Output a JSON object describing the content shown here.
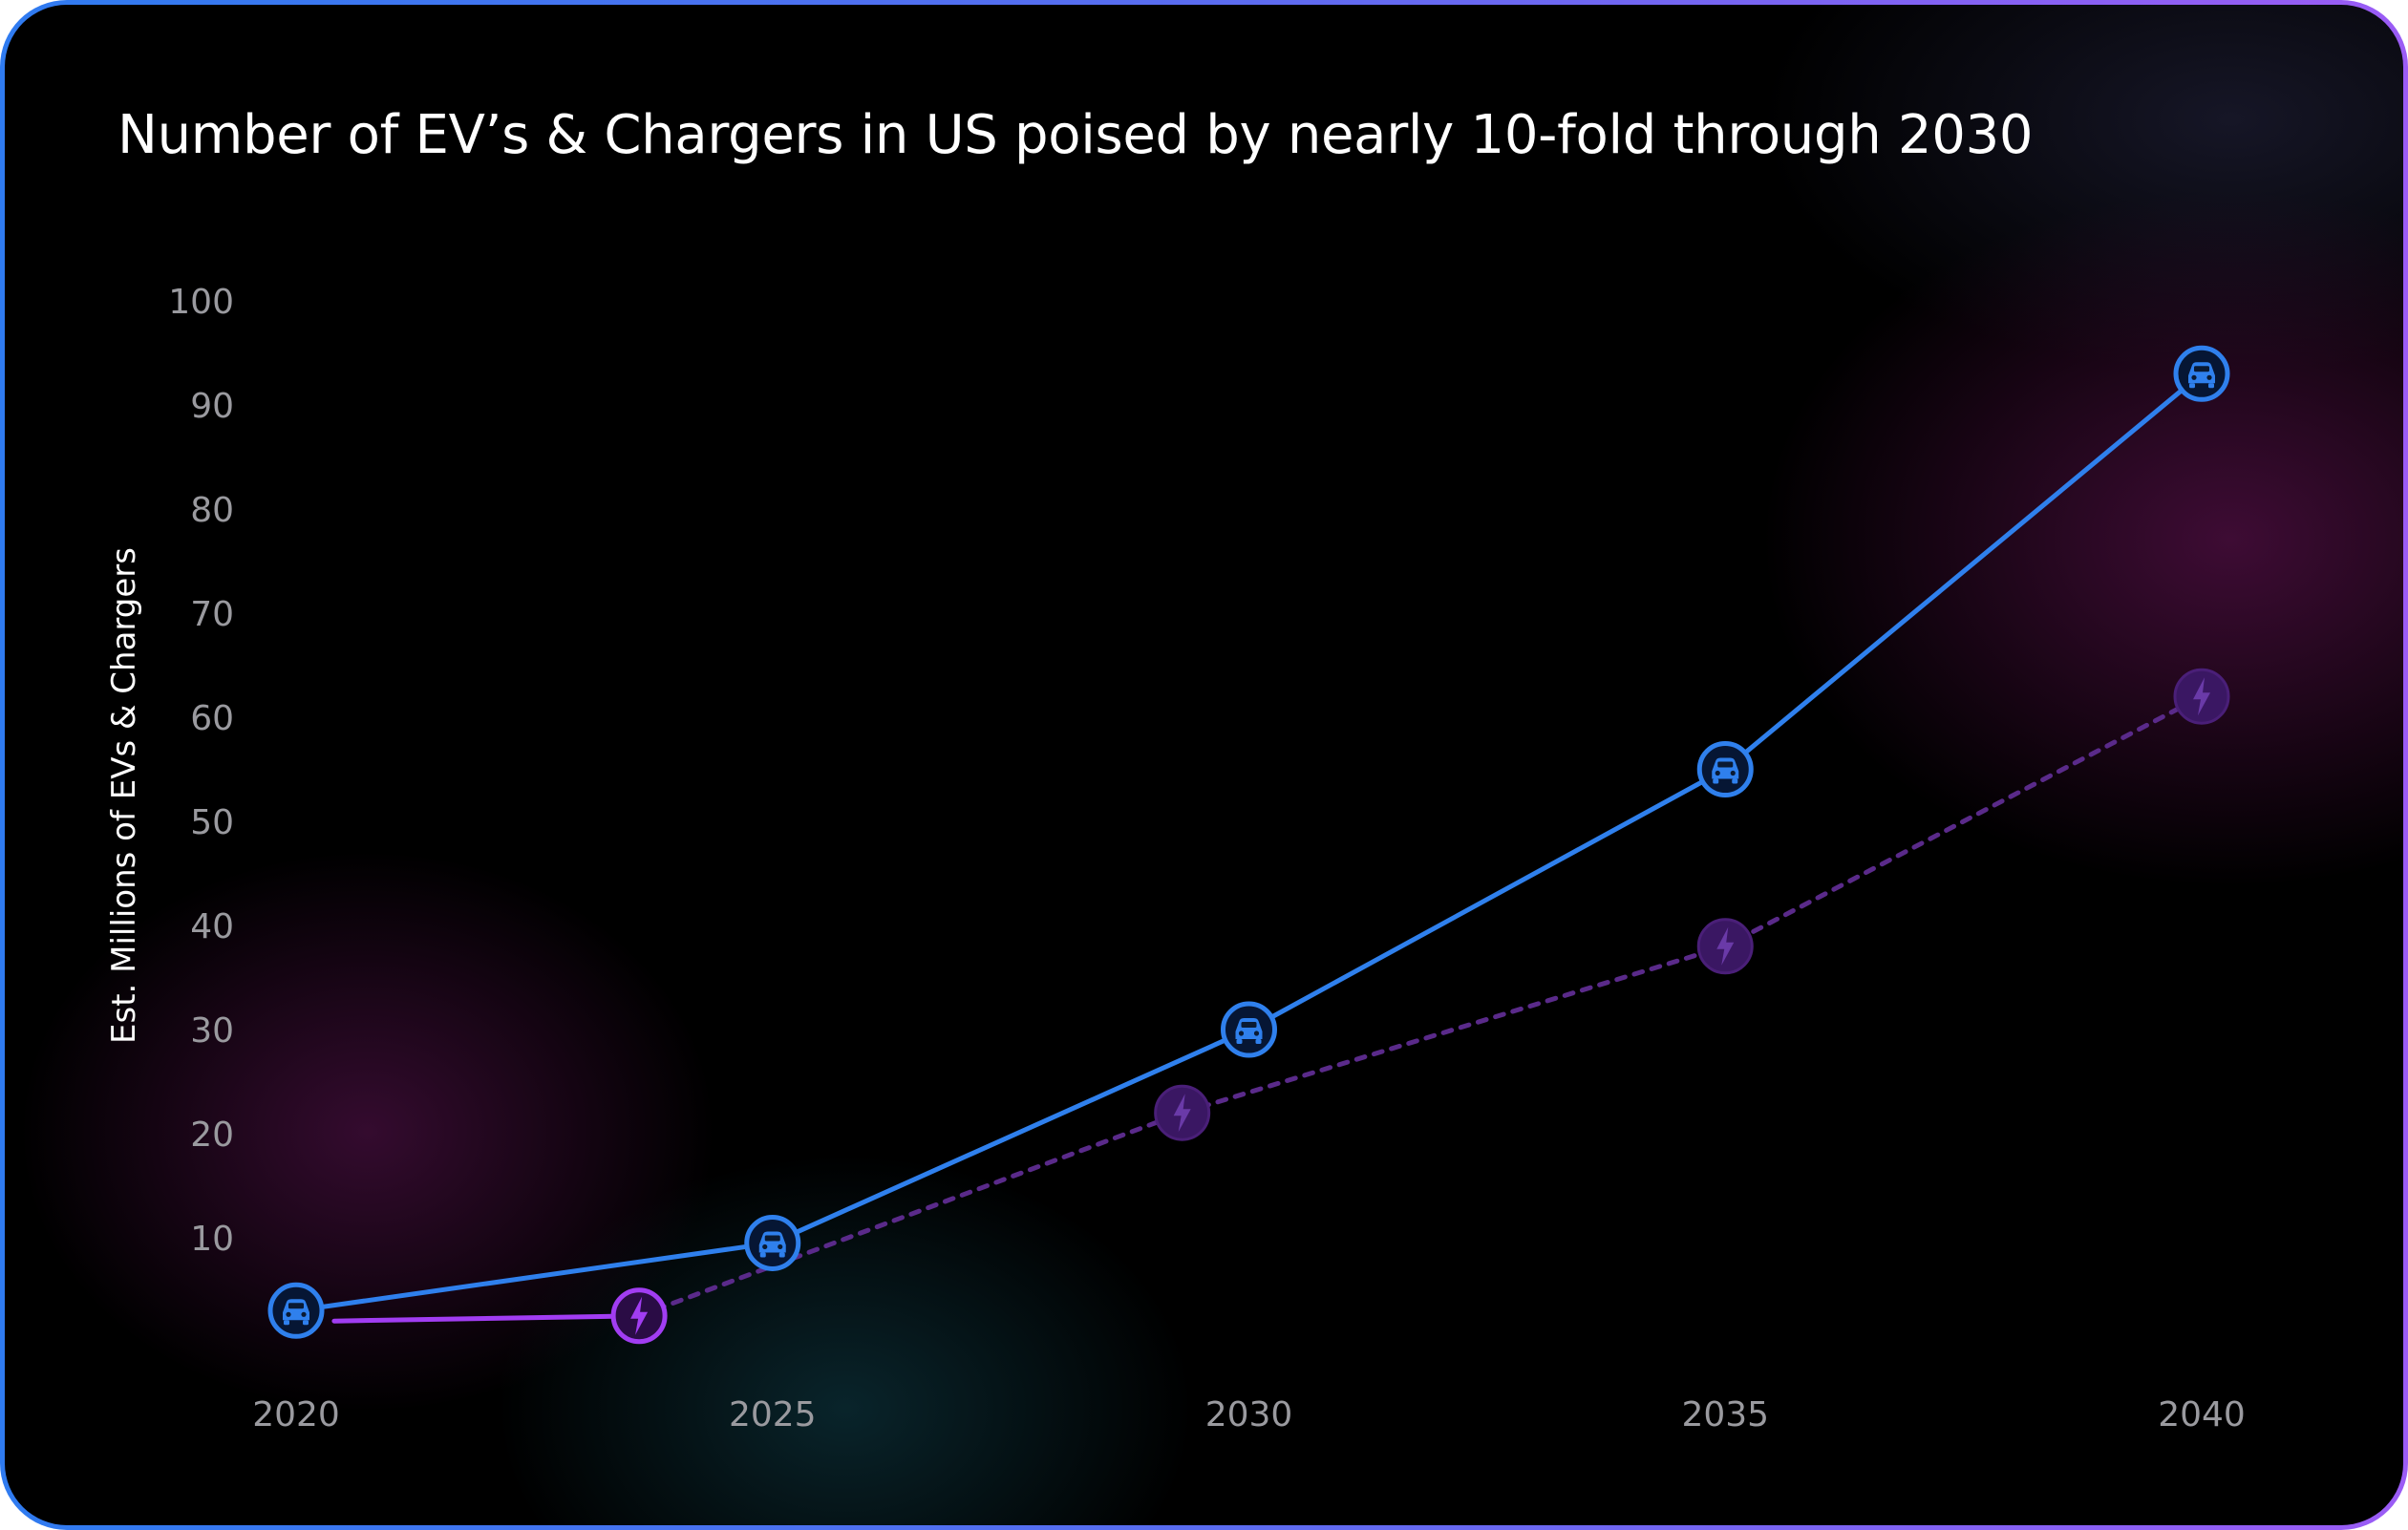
{
  "chart_data": {
    "type": "line",
    "title": "Number of EV’s & Chargers in US poised by nearly 10-fold through 2030",
    "xlabel": "",
    "ylabel": "Est. Millions of EVs & Chargers",
    "x_ticks": [
      "2020",
      "2025",
      "2030",
      "2035",
      "2040"
    ],
    "y_ticks": [
      "10",
      "20",
      "30",
      "40",
      "50",
      "60",
      "70",
      "80",
      "90",
      "100"
    ],
    "xlim": [
      2020,
      2040
    ],
    "ylim": [
      0,
      100
    ],
    "grid": false,
    "legend": "none",
    "series": [
      {
        "key": "evs",
        "icon": "car-icon",
        "color": "#2f80ed",
        "line_style": "solid",
        "points": [
          {
            "x": 2020,
            "y": 3
          },
          {
            "x": 2025,
            "y": 9.5
          },
          {
            "x": 2030,
            "y": 30
          },
          {
            "x": 2035,
            "y": 55
          },
          {
            "x": 2040,
            "y": 93
          }
        ]
      },
      {
        "key": "chargers",
        "icon": "lightning-icon",
        "color": "#a13df2",
        "projected_color": "#5a2a8a",
        "line_style": "solid-then-dotted",
        "points": [
          {
            "x": 2020.4,
            "y": 2
          },
          {
            "x": 2023.6,
            "y": 2.5
          },
          {
            "x": 2029.3,
            "y": 22
          },
          {
            "x": 2035,
            "y": 38
          },
          {
            "x": 2040,
            "y": 62
          }
        ],
        "marker_points": [
          {
            "x": 2023.6,
            "y": 2.5,
            "style": "highlight"
          },
          {
            "x": 2029.3,
            "y": 22,
            "style": "muted"
          },
          {
            "x": 2035,
            "y": 38,
            "style": "muted"
          },
          {
            "x": 2040,
            "y": 62,
            "style": "muted"
          }
        ]
      }
    ]
  }
}
